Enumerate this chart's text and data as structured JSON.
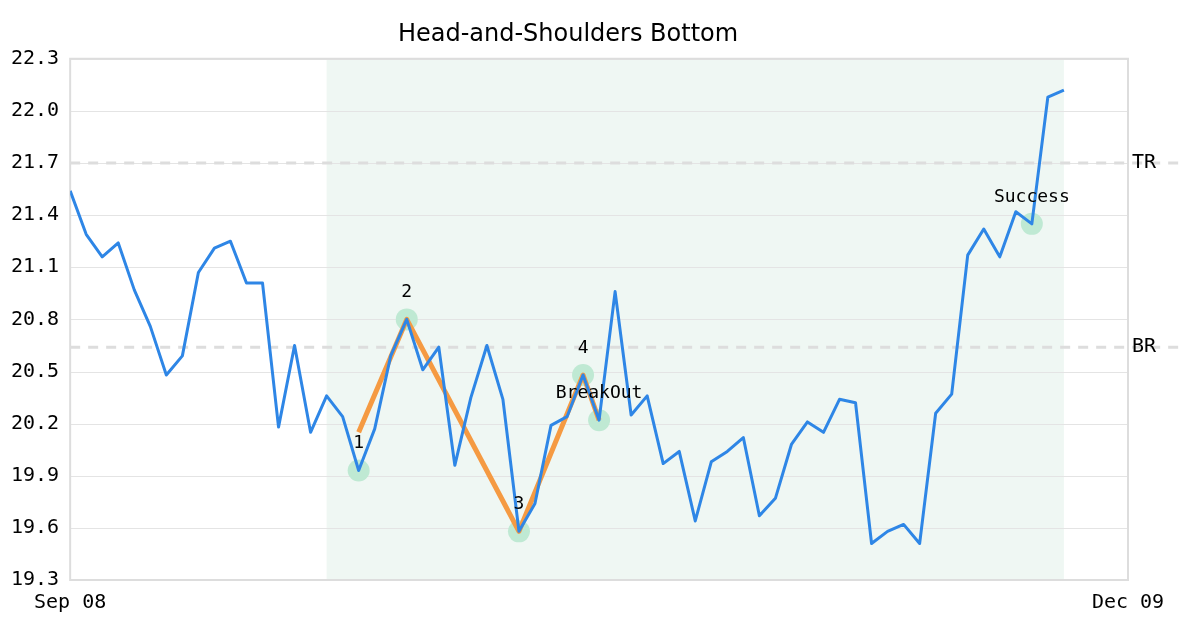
{
  "chart_data": {
    "type": "line",
    "title": "Head-and-Shoulders Bottom",
    "x": [
      "2008-09-08",
      "2008-09-15",
      "2008-09-22",
      "2008-09-29",
      "2008-10-06",
      "2008-10-13",
      "2008-10-20",
      "2008-10-27",
      "2008-11-03",
      "2008-11-10",
      "2008-11-17",
      "2008-11-24",
      "2008-12-01",
      "2008-12-08",
      "2008-12-15",
      "2008-12-22",
      "2008-12-29",
      "2009-01-05",
      "2009-01-12",
      "2009-01-19",
      "2009-01-26",
      "2009-02-02",
      "2009-02-09",
      "2009-02-16",
      "2009-02-23",
      "2009-03-02",
      "2009-03-09",
      "2009-03-16",
      "2009-03-23",
      "2009-03-30",
      "2009-04-06",
      "2009-04-13",
      "2009-04-20",
      "2009-04-27",
      "2009-05-04",
      "2009-05-11",
      "2009-05-18",
      "2009-05-25",
      "2009-06-01",
      "2009-06-08",
      "2009-06-15",
      "2009-06-22",
      "2009-06-29",
      "2009-07-06",
      "2009-07-13",
      "2009-07-20",
      "2009-07-27",
      "2009-08-03",
      "2009-08-10",
      "2009-08-17",
      "2009-08-24",
      "2009-08-31",
      "2009-09-07",
      "2009-09-14",
      "2009-09-21",
      "2009-09-28",
      "2009-10-05",
      "2009-10-12",
      "2009-10-19",
      "2009-10-26",
      "2009-11-02",
      "2009-11-09",
      "2009-11-16"
    ],
    "series": [
      {
        "color": "#2e86e6",
        "values": [
          21.54,
          21.29,
          21.16,
          21.24,
          20.97,
          20.76,
          20.48,
          20.59,
          21.07,
          21.21,
          21.25,
          21.01,
          21.01,
          20.18,
          20.65,
          20.15,
          20.36,
          20.24,
          19.93,
          20.17,
          20.59,
          20.8,
          20.51,
          20.64,
          19.96,
          20.35,
          20.65,
          20.34,
          19.58,
          19.74,
          20.19,
          20.24,
          20.48,
          20.22,
          20.96,
          20.25,
          20.36,
          19.97,
          20.04,
          19.64,
          19.98,
          20.04,
          20.12,
          19.67,
          19.77,
          20.08,
          20.21,
          20.15,
          20.34,
          20.32,
          19.51,
          19.58,
          19.62,
          19.51,
          20.26,
          20.37,
          21.17,
          21.32,
          21.16,
          21.42,
          21.35,
          22.08,
          22.12
        ]
      },
      {
        "type": "line",
        "color": "#f59a42",
        "x": [
          "2009-01-12",
          "2009-02-02",
          "2009-03-23",
          "2009-04-20",
          "2009-04-27"
        ],
        "values": [
          20.15,
          20.8,
          19.58,
          20.48,
          20.22
        ]
      },
      {
        "type": "scatter",
        "color": "#bfe9d3",
        "marker": "circle",
        "x": [
          "2009-01-12",
          "2009-02-02",
          "2009-03-23",
          "2009-04-20",
          "2009-04-27",
          "2009-11-02"
        ],
        "values": [
          19.93,
          20.8,
          19.58,
          20.48,
          20.22,
          21.35
        ]
      }
    ],
    "xlim": [
      "2008-09-08",
      "2009-12-14"
    ],
    "xticks": [
      {
        "value": "2008-09-08",
        "label": "Sep 08"
      },
      {
        "value": "2009-12-14",
        "label": "Dec 09"
      }
    ],
    "ylim": [
      19.3,
      22.3
    ],
    "yticks": [
      19.3,
      19.6,
      19.9,
      20.2,
      20.5,
      20.8,
      21.1,
      21.4,
      21.7,
      {
        "value": 22,
        "label": "22.0"
      },
      22.3
    ],
    "ref_lines": [
      {
        "axis": "y",
        "value": 21.7,
        "label": "TR",
        "color": "#dddddd",
        "line_style": "dashed"
      },
      {
        "axis": "y",
        "value": 20.64,
        "label": "BR",
        "color": "#dddddd",
        "line_style": "dashed"
      }
    ],
    "bands": [
      {
        "axis": "x",
        "from": "2008-12-29",
        "to": "2009-11-16",
        "color": "#eff7f3"
      }
    ],
    "annotations": [
      {
        "text": "1",
        "x": "2009-01-12",
        "y": 19.93
      },
      {
        "text": "2",
        "x": "2009-02-02",
        "y": 20.8
      },
      {
        "text": "3",
        "x": "2009-03-23",
        "y": 19.58
      },
      {
        "text": "4",
        "x": "2009-04-20",
        "y": 20.48
      },
      {
        "text": "BreakOut",
        "x": "2009-04-27",
        "y": 20.22
      },
      {
        "text": "Success",
        "x": "2009-11-02",
        "y": 21.35
      }
    ],
    "grid": "y",
    "legend": false,
    "marker": "none",
    "line_style": "solid"
  }
}
